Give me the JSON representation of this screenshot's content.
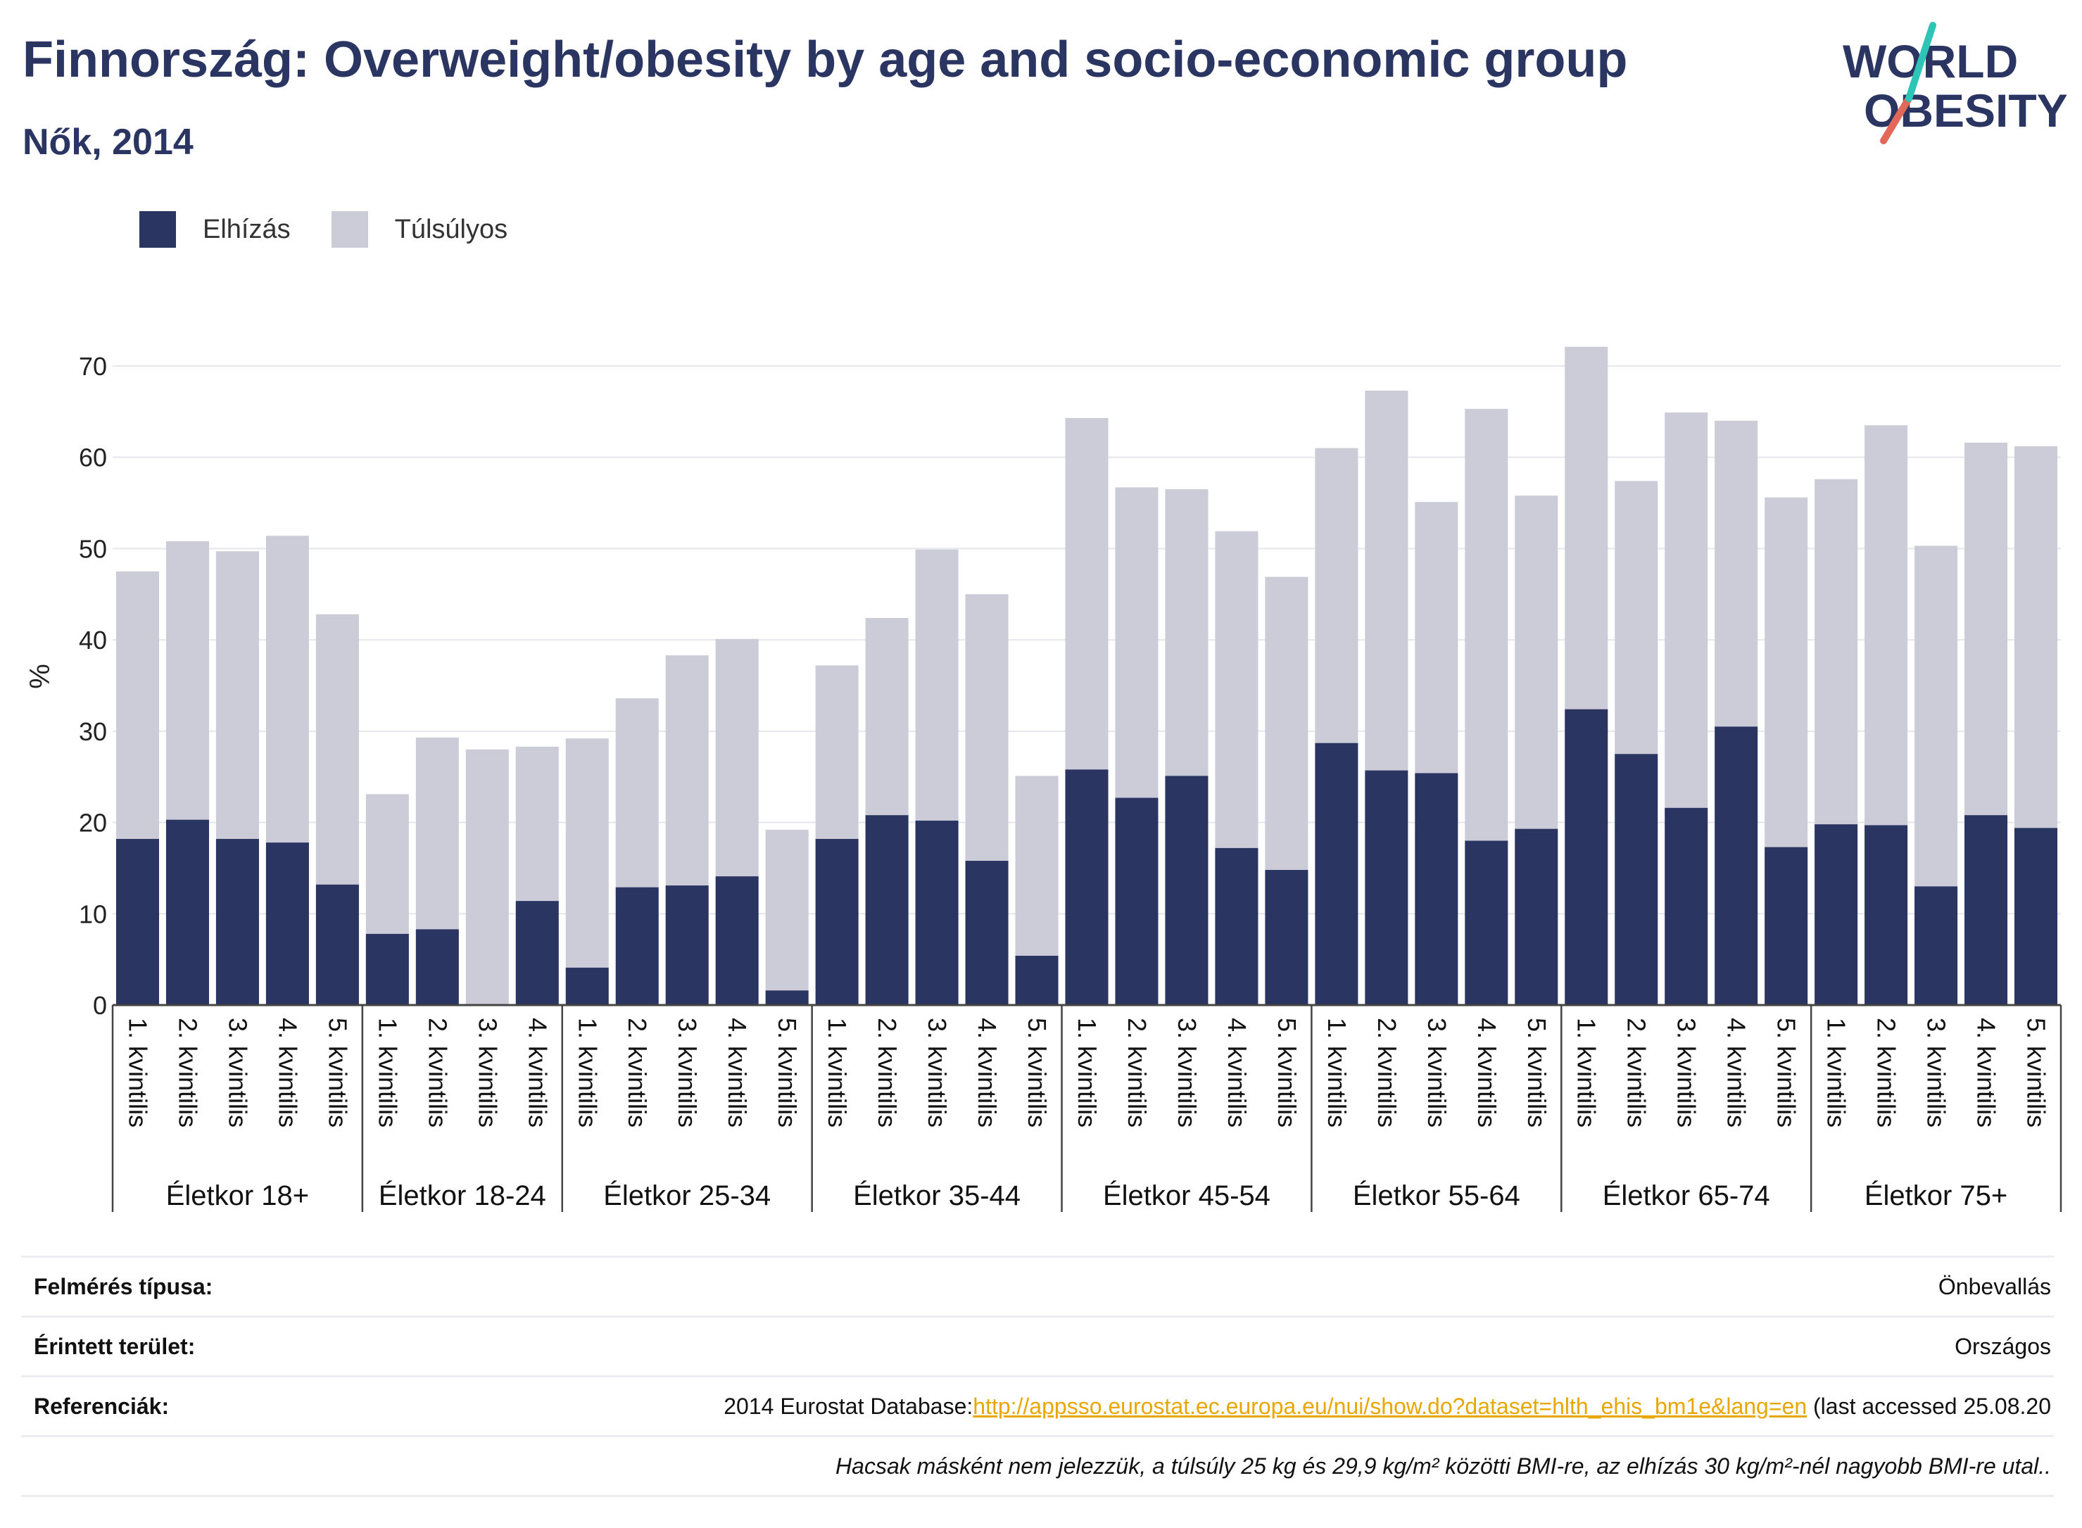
{
  "header": {
    "title": "Finnország: Overweight/obesity by age and socio-economic group",
    "subtitle": "Nők, 2014",
    "logo_line1": "WORLD",
    "logo_line2": "OBESITY"
  },
  "legend": [
    {
      "label": "Elhízás",
      "color": "#2b3562"
    },
    {
      "label": "Túlsúlyos",
      "color": "#cbccd8"
    }
  ],
  "colors": {
    "obesity": "#2b3562",
    "overweight": "#cbccd8",
    "text": "#2b3562",
    "grid": "#e6e6ee",
    "logo_teal": "#2ec4b6",
    "logo_coral": "#e4685a"
  },
  "chart_data": {
    "type": "bar",
    "stacked": true,
    "ylabel": "%",
    "xlabel": "",
    "ylim": [
      0,
      72
    ],
    "yticks": [
      0,
      10,
      20,
      30,
      40,
      50,
      60,
      70
    ],
    "grid": true,
    "legend_position": "top-left",
    "groups": [
      {
        "label": "Életkor 18+",
        "categories": [
          "1. kvintilis",
          "2. kvintilis",
          "3. kvintilis",
          "4. kvintilis",
          "5. kvintilis"
        ]
      },
      {
        "label": "Életkor 18-24",
        "categories": [
          "1. kvintilis",
          "2. kvintilis",
          "3. kvintilis",
          "4. kvintilis"
        ]
      },
      {
        "label": "Életkor 25-34",
        "categories": [
          "1. kvintilis",
          "2. kvintilis",
          "3. kvintilis",
          "4. kvintilis",
          "5. kvintilis"
        ]
      },
      {
        "label": "Életkor 35-44",
        "categories": [
          "1. kvintilis",
          "2. kvintilis",
          "3. kvintilis",
          "4. kvintilis",
          "5. kvintilis"
        ]
      },
      {
        "label": "Életkor 45-54",
        "categories": [
          "1. kvintilis",
          "2. kvintilis",
          "3. kvintilis",
          "4. kvintilis",
          "5. kvintilis"
        ]
      },
      {
        "label": "Életkor 55-64",
        "categories": [
          "1. kvintilis",
          "2. kvintilis",
          "3. kvintilis",
          "4. kvintilis",
          "5. kvintilis"
        ]
      },
      {
        "label": "Életkor 65-74",
        "categories": [
          "1. kvintilis",
          "2. kvintilis",
          "3. kvintilis",
          "4. kvintilis",
          "5. kvintilis"
        ]
      },
      {
        "label": "Életkor 75+",
        "categories": [
          "1. kvintilis",
          "2. kvintilis",
          "3. kvintilis",
          "4. kvintilis",
          "5. kvintilis"
        ]
      }
    ],
    "series": [
      {
        "name": "Elhízás",
        "values": [
          18.2,
          20.3,
          18.2,
          17.8,
          13.2,
          7.8,
          8.3,
          0,
          11.4,
          4.1,
          12.9,
          13.1,
          14.1,
          1.6,
          18.2,
          20.8,
          20.2,
          15.8,
          5.4,
          25.8,
          22.7,
          25.1,
          17.2,
          14.8,
          28.7,
          25.7,
          25.4,
          18.0,
          19.3,
          32.4,
          27.5,
          21.6,
          30.5,
          17.3,
          19.8,
          19.7,
          13.0,
          20.8,
          19.4
        ]
      },
      {
        "name": "Túlsúlyos",
        "values": [
          29.3,
          30.5,
          31.5,
          33.6,
          29.6,
          15.3,
          21.0,
          28.0,
          16.9,
          25.1,
          20.7,
          25.2,
          26.0,
          17.6,
          19.0,
          21.6,
          29.7,
          29.2,
          19.7,
          38.5,
          34.0,
          31.4,
          34.7,
          32.1,
          32.3,
          41.6,
          29.7,
          47.3,
          36.5,
          39.7,
          29.9,
          43.3,
          33.5,
          38.3,
          37.8,
          43.8,
          37.3,
          40.8,
          41.8
        ]
      }
    ]
  },
  "meta": {
    "survey_label": "Felmérés típusa:",
    "survey_value": "Önbevallás",
    "area_label": "Érintett terület:",
    "area_value": "Országos",
    "ref_label": "Referenciák:",
    "ref_prefix": "2014 Eurostat Database:",
    "ref_link": "http://appsso.eurostat.ec.europa.eu/nui/show.do?dataset=hlth_ehis_bm1e&lang=en",
    "ref_suffix": " (last accessed 25.08.20",
    "note": "Hacsak másként nem jelezzük, a túlsúly 25 kg és 29,9 kg/m² közötti BMI-re, az elhízás 30 kg/m²-nél nagyobb BMI-re utal.."
  }
}
